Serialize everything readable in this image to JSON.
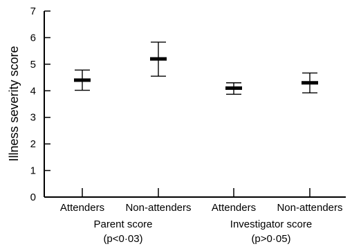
{
  "chart_data": {
    "type": "errorbar",
    "ylabel": "Illness severity score",
    "ylim": [
      0,
      7
    ],
    "yticks": [
      0,
      1,
      2,
      3,
      4,
      5,
      6,
      7
    ],
    "grid": false,
    "categories": [
      "Attenders",
      "Non-attenders",
      "Attenders",
      "Non-attenders"
    ],
    "groups": [
      {
        "name": "Parent score",
        "pvalue": "(p<0·03)"
      },
      {
        "name": "Investigator score",
        "pvalue": "(p>0·05)"
      }
    ],
    "points": [
      {
        "group": 0,
        "label": "Attenders",
        "mean": 4.4,
        "low": 4.02,
        "high": 4.78
      },
      {
        "group": 0,
        "label": "Non-attenders",
        "mean": 5.2,
        "low": 4.55,
        "high": 5.83
      },
      {
        "group": 1,
        "label": "Attenders",
        "mean": 4.1,
        "low": 3.87,
        "high": 4.3
      },
      {
        "group": 1,
        "label": "Non-attenders",
        "mean": 4.3,
        "low": 3.92,
        "high": 4.67
      }
    ]
  }
}
